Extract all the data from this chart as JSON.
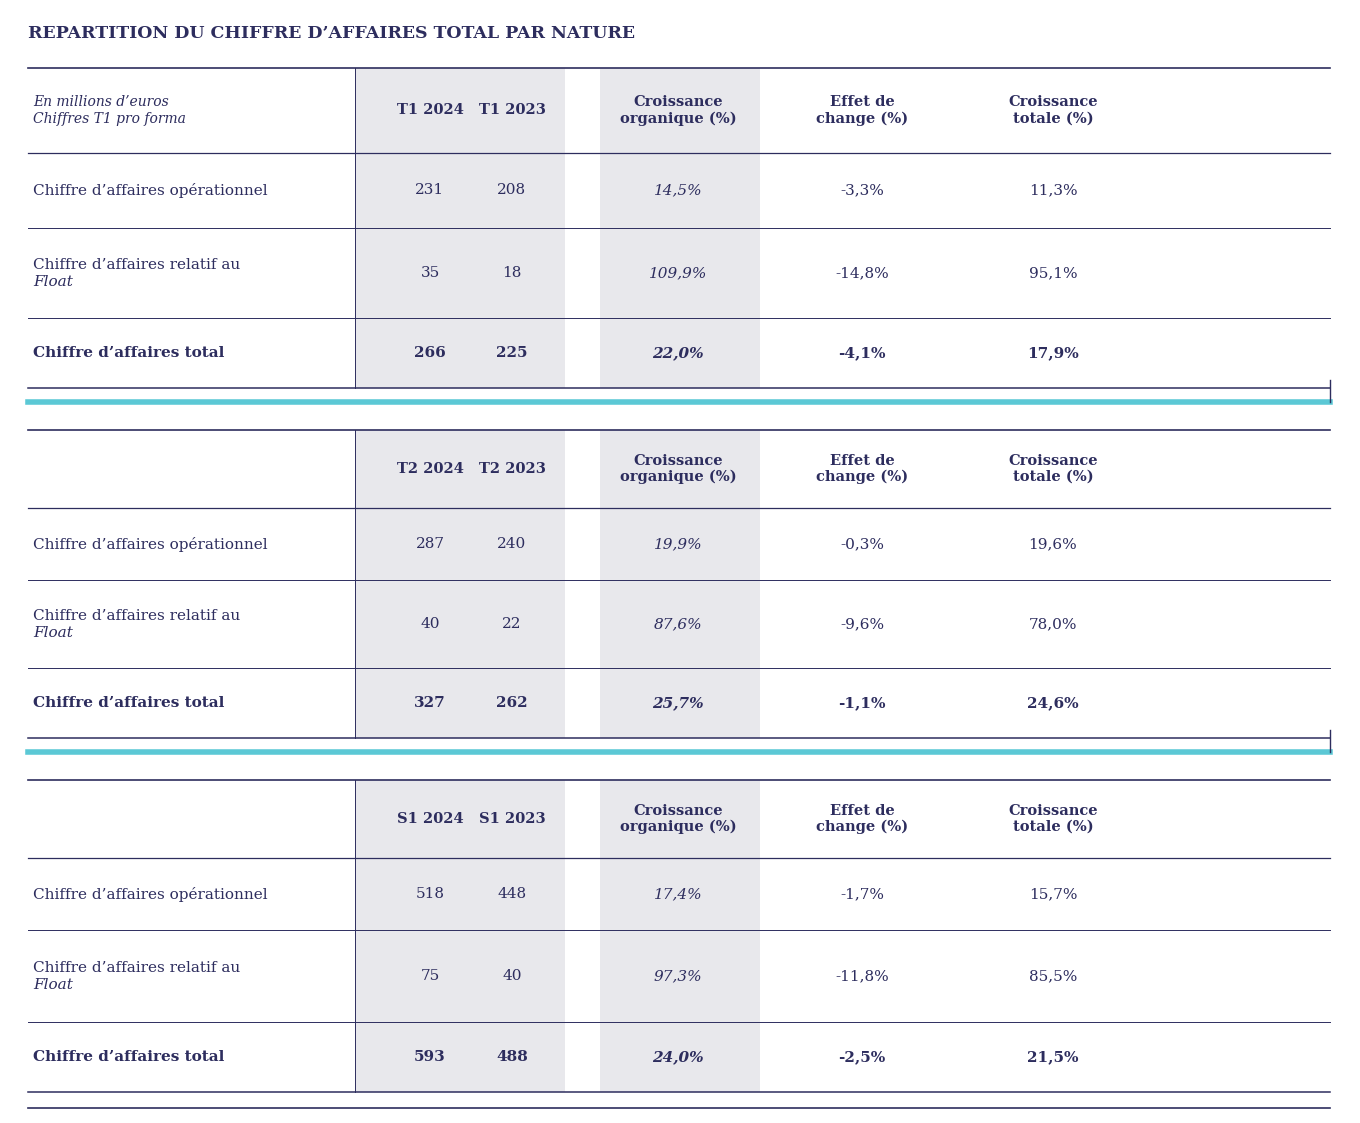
{
  "title": "REPARTITION DU CHIFFRE D’AFFAIRES TOTAL PAR NATURE",
  "title_color": "#2d2d5e",
  "background_color": "#ffffff",
  "cyan_line_color": "#5bc8d5",
  "dark_line_color": "#2d2d5e",
  "text_color": "#2d2d5e",
  "shaded_color": "#e8e8ec",
  "sections": [
    {
      "period_col1": "T1 2024",
      "period_col2": "T1 2023",
      "header_note1": "En millions d’euros",
      "header_note2": "Chiffres T1 pro forma",
      "rows": [
        {
          "label": "Chiffre d’affaires opérationnel",
          "label_bold": false,
          "col1": "231",
          "col2": "208",
          "col3": "14,5%",
          "col4": "-3,3%",
          "col5": "11,3%"
        },
        {
          "label": "Chiffre d’affaires relatif au\nFloat",
          "label_bold": false,
          "col1": "35",
          "col2": "18",
          "col3": "109,9%",
          "col4": "-14,8%",
          "col5": "95,1%"
        },
        {
          "label": "Chiffre d’affaires total",
          "label_bold": true,
          "col1": "266",
          "col2": "225",
          "col3": "22,0%",
          "col4": "-4,1%",
          "col5": "17,9%"
        }
      ]
    },
    {
      "period_col1": "T2 2024",
      "period_col2": "T2 2023",
      "header_note1": "",
      "header_note2": "",
      "rows": [
        {
          "label": "Chiffre d’affaires opérationnel",
          "label_bold": false,
          "col1": "287",
          "col2": "240",
          "col3": "19,9%",
          "col4": "-0,3%",
          "col5": "19,6%"
        },
        {
          "label": "Chiffre d’affaires relatif au\nFloat",
          "label_bold": false,
          "col1": "40",
          "col2": "22",
          "col3": "87,6%",
          "col4": "-9,6%",
          "col5": "78,0%"
        },
        {
          "label": "Chiffre d’affaires total",
          "label_bold": true,
          "col1": "327",
          "col2": "262",
          "col3": "25,7%",
          "col4": "-1,1%",
          "col5": "24,6%"
        }
      ]
    },
    {
      "period_col1": "S1 2024",
      "period_col2": "S1 2023",
      "header_note1": "",
      "header_note2": "",
      "rows": [
        {
          "label": "Chiffre d’affaires opérationnel",
          "label_bold": false,
          "col1": "518",
          "col2": "448",
          "col3": "17,4%",
          "col4": "-1,7%",
          "col5": "15,7%"
        },
        {
          "label": "Chiffre d’affaires relatif au\nFloat",
          "label_bold": false,
          "col1": "75",
          "col2": "40",
          "col3": "97,3%",
          "col4": "-11,8%",
          "col5": "85,5%"
        },
        {
          "label": "Chiffre d’affaires total",
          "label_bold": true,
          "col1": "593",
          "col2": "488",
          "col3": "24,0%",
          "col4": "-2,5%",
          "col5": "21,5%"
        }
      ]
    }
  ],
  "col_headers": [
    "Croissance\norganique (%)",
    "Effet de\nchange (%)",
    "Croissance\ntotale (%)"
  ]
}
